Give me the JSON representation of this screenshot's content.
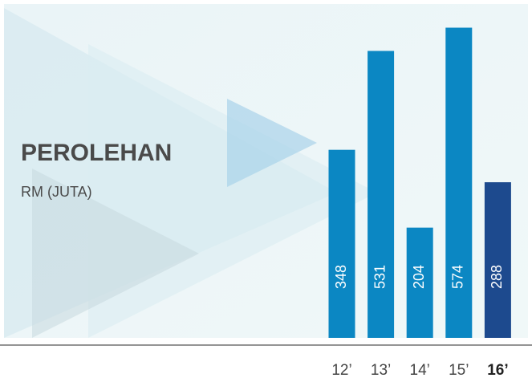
{
  "chart_data": {
    "type": "bar",
    "title": "PEROLEHAN",
    "subtitle": "RM (JUTA)",
    "categories": [
      "12’",
      "13’",
      "14’",
      "15’",
      "16’"
    ],
    "values": [
      348,
      531,
      204,
      574,
      288
    ],
    "colors": [
      "#0b87c3",
      "#0b87c3",
      "#0b87c3",
      "#0b87c3",
      "#1d4a8e"
    ],
    "highlight_index": 4,
    "ylim": [
      0,
      600
    ]
  }
}
